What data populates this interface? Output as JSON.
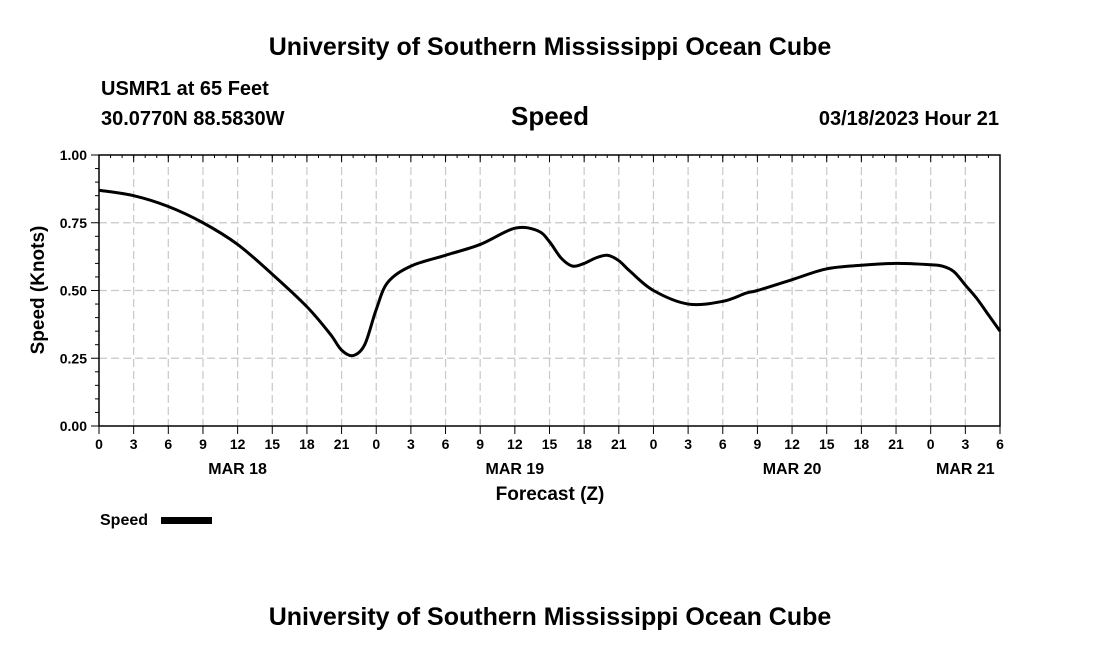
{
  "header": {
    "title_top": "University of Southern Mississippi Ocean Cube",
    "station": "USMR1 at 65 Feet",
    "coords": "30.0770N  88.5830W",
    "chart_name": "Speed",
    "datetime": "03/18/2023 Hour 21",
    "title_bottom": "University of Southern Mississippi Ocean Cube"
  },
  "legend": {
    "label": "Speed"
  },
  "chart_data": {
    "type": "line",
    "title": "Speed",
    "xlabel": "Forecast (Z)",
    "ylabel": "Speed (Knots)",
    "xlim": [
      0,
      78
    ],
    "ylim": [
      0,
      1
    ],
    "grid": true,
    "y_ticks": [
      0,
      0.25,
      0.5,
      0.75,
      1
    ],
    "y_tick_labels": [
      "0.00",
      "0.25",
      "0.50",
      "0.75",
      "1.00"
    ],
    "x_ticks": [
      0,
      3,
      6,
      9,
      12,
      15,
      18,
      21,
      24,
      27,
      30,
      33,
      36,
      39,
      42,
      45,
      48,
      51,
      54,
      57,
      60,
      63,
      66,
      69,
      72,
      75,
      78
    ],
    "x_tick_labels": [
      "0",
      "3",
      "6",
      "9",
      "12",
      "15",
      "18",
      "21",
      "0",
      "3",
      "6",
      "9",
      "12",
      "15",
      "18",
      "21",
      "0",
      "3",
      "6",
      "9",
      "12",
      "15",
      "18",
      "21",
      "0",
      "3",
      "6"
    ],
    "date_labels": [
      {
        "x": 12,
        "label": "MAR 18"
      },
      {
        "x": 36,
        "label": "MAR 19"
      },
      {
        "x": 60,
        "label": "MAR 20"
      },
      {
        "x": 75,
        "label": "MAR 21"
      }
    ],
    "series": [
      {
        "name": "Speed",
        "color": "#000000",
        "x": [
          0,
          3,
          6,
          9,
          12,
          15,
          18,
          20,
          21,
          22,
          23,
          24,
          25,
          27,
          30,
          33,
          36,
          38,
          39,
          40,
          41,
          42,
          43,
          44,
          45,
          46,
          48,
          51,
          54,
          56,
          57,
          60,
          63,
          66,
          69,
          72,
          73,
          74,
          75,
          76,
          77,
          78
        ],
        "y": [
          0.87,
          0.85,
          0.81,
          0.75,
          0.67,
          0.56,
          0.44,
          0.34,
          0.28,
          0.26,
          0.3,
          0.43,
          0.53,
          0.59,
          0.63,
          0.67,
          0.73,
          0.72,
          0.68,
          0.62,
          0.59,
          0.6,
          0.62,
          0.63,
          0.61,
          0.57,
          0.5,
          0.45,
          0.46,
          0.49,
          0.5,
          0.54,
          0.58,
          0.593,
          0.6,
          0.595,
          0.59,
          0.57,
          0.52,
          0.47,
          0.41,
          0.35
        ]
      }
    ]
  }
}
